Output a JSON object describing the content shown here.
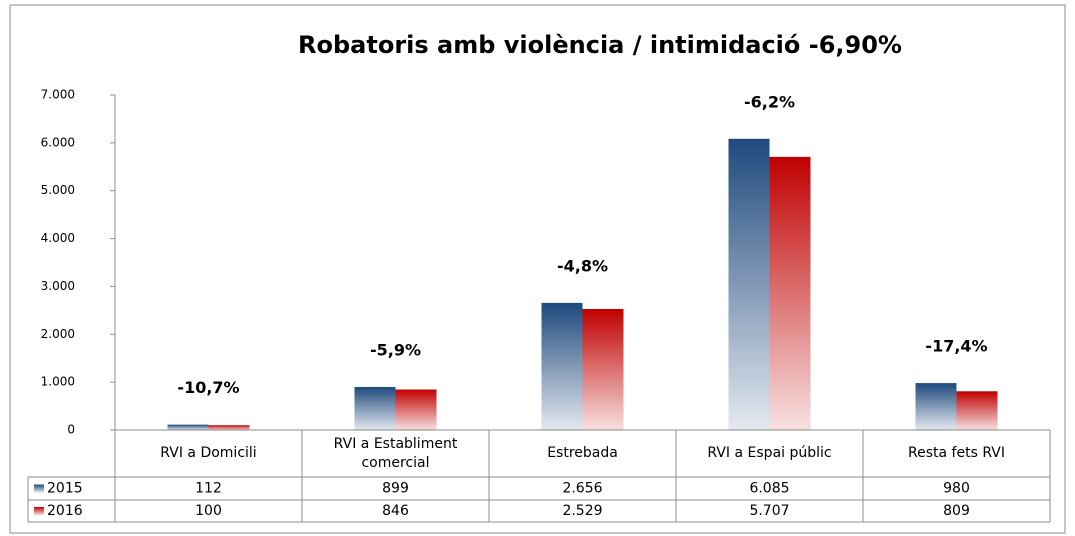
{
  "chart_data": {
    "type": "bar",
    "title": "Robatoris amb violència / intimidació  -6,90%",
    "categories": [
      "RVI a Domicili",
      "RVI a Establiment comercial",
      "Estrebada",
      "RVI a Espai públic",
      "Resta fets RVI"
    ],
    "series": [
      {
        "name": "2015",
        "color": "#1f497d",
        "values": [
          112,
          899,
          2656,
          6085,
          980
        ],
        "value_labels": [
          "112",
          "899",
          "2.656",
          "6.085",
          "980"
        ]
      },
      {
        "name": "2016",
        "color": "#c00000",
        "values": [
          100,
          846,
          2529,
          5707,
          809
        ],
        "value_labels": [
          "100",
          "846",
          "2.529",
          "5.707",
          "809"
        ]
      }
    ],
    "annotations": [
      "-10,7%",
      "-5,9%",
      "-4,8%",
      "-6,2%",
      "-17,4%"
    ],
    "ylim": [
      0,
      7000
    ],
    "yticks": [
      0,
      {
        "value": 1000,
        "label": "1.000"
      },
      {
        "value": 2000,
        "label": "2.000"
      },
      {
        "value": 3000,
        "label": "3.000"
      },
      {
        "value": 4000,
        "label": "4.000"
      },
      {
        "value": 5000,
        "label": "5.000"
      },
      {
        "value": 6000,
        "label": "6.000"
      },
      {
        "value": 7000,
        "label": "7.000"
      }
    ],
    "grid": false,
    "data_table": true
  }
}
